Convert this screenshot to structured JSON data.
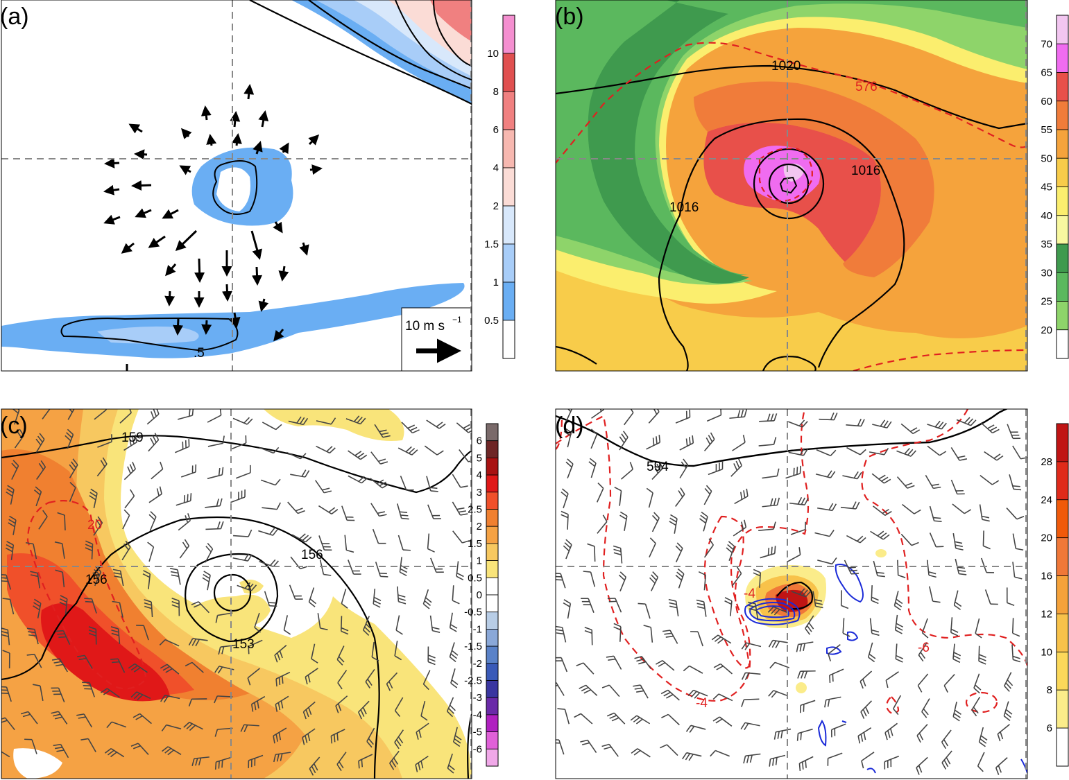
{
  "panels": [
    {
      "id": "a",
      "label": "(a)",
      "colorbar_ticks": [
        "10",
        "8",
        "6",
        "4",
        "2",
        "1.5",
        "1",
        "0.5"
      ],
      "colorbar_colors": [
        "#f48fd0",
        "#e05050",
        "#f08080",
        "#f7b8b0",
        "#fbdcd6",
        "#d8e8fb",
        "#a8cdf8",
        "#6aaef3",
        "#ffffff"
      ],
      "contour_labels": [
        ".5"
      ],
      "reference_vector_label": "10 m s",
      "reference_vector_exponent": "−1"
    },
    {
      "id": "b",
      "label": "(b)",
      "colorbar_ticks": [
        "70",
        "65",
        "60",
        "55",
        "50",
        "45",
        "40",
        "35",
        "30",
        "25",
        "20"
      ],
      "colorbar_colors": [
        "#f2c6f0",
        "#f06cf0",
        "#e8504a",
        "#f07c3a",
        "#f5a33c",
        "#f8cc4a",
        "#fbee6e",
        "#f8f8a0",
        "#3f9a4e",
        "#5bb85e",
        "#8ed46a",
        "#ffffff"
      ],
      "contour_labels": [
        "1020",
        "576",
        "1016",
        "1016"
      ]
    },
    {
      "id": "c",
      "label": "(c)",
      "colorbar_ticks": [
        "6",
        "5",
        "4",
        "3",
        "2.5",
        "2",
        "1.5",
        "1",
        "0.5",
        "0",
        "-0.5",
        "-1",
        "-1.5",
        "-2",
        "-2.5",
        "-3",
        "-4",
        "-5",
        "-6"
      ],
      "colorbar_colors": [
        "#7a6a6a",
        "#6e2626",
        "#a81212",
        "#e01818",
        "#f0502a",
        "#f08030",
        "#f5a244",
        "#f7c860",
        "#f9e47a",
        "#ffffff",
        "#ffffff",
        "#b8cde6",
        "#8aa8d8",
        "#5a82c8",
        "#3a5ab8",
        "#3a36a0",
        "#6a2aa8",
        "#b020c0",
        "#e060d8",
        "#f0a8e8"
      ],
      "contour_labels": [
        "159",
        "20",
        "156",
        "156",
        "153"
      ]
    },
    {
      "id": "d",
      "label": "(d)",
      "colorbar_ticks": [
        "28",
        "24",
        "20",
        "16",
        "12",
        "10",
        "8",
        "6"
      ],
      "colorbar_colors": [
        "#c01414",
        "#e02a1a",
        "#f05a0a",
        "#f07838",
        "#f5a23a",
        "#f8c24a",
        "#fbd85a",
        "#fbec8a",
        "#ffffff"
      ],
      "contour_labels": [
        "594",
        "-4",
        "-4",
        "-6"
      ]
    }
  ]
}
